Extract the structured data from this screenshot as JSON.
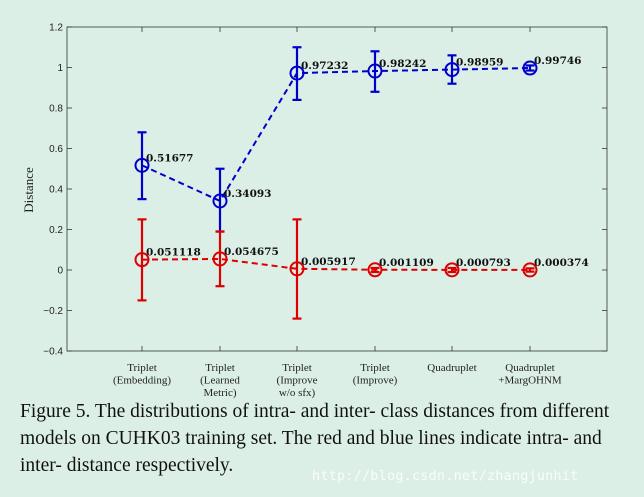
{
  "chart_data": {
    "type": "line",
    "ylabel": "Distance",
    "xlabel": "",
    "ylim": [
      -0.4,
      1.2
    ],
    "yticks": [
      "-0.4",
      "-0.2",
      "0",
      "0.2",
      "0.4",
      "0.6",
      "0.8",
      "1",
      "1.2"
    ],
    "categories": [
      [
        "Triplet",
        "(Embedding)"
      ],
      [
        "Triplet",
        "(Learned",
        "Metric)"
      ],
      [
        "Triplet",
        "(Improve",
        "w/o sfx)"
      ],
      [
        "Triplet",
        "(Improve)"
      ],
      [
        "Quadruplet"
      ],
      [
        "Quadruplet",
        "+MargOHNM"
      ]
    ],
    "grid": false,
    "series": [
      {
        "color": "#0000cc",
        "values": [
          0.51677,
          0.34093,
          0.97232,
          0.98242,
          0.98959,
          0.99746
        ],
        "labels": [
          "0.51677",
          "0.34093",
          "0.97232",
          "0.98242",
          "0.98959",
          "0.99746"
        ],
        "error_low": [
          0.35,
          0.19,
          0.84,
          0.88,
          0.92,
          0.985
        ],
        "error_high": [
          0.68,
          0.5,
          1.1,
          1.08,
          1.06,
          1.01
        ]
      },
      {
        "color": "#dd0000",
        "values": [
          0.051118,
          0.054675,
          0.005917,
          0.001109,
          0.000793,
          0.000374
        ],
        "labels": [
          "0.051118",
          "0.054675",
          "0.005917",
          "0.001109",
          "0.000793",
          "0.000374"
        ],
        "error_low": [
          -0.15,
          -0.08,
          -0.24,
          -0.01,
          -0.01,
          -0.008
        ],
        "error_high": [
          0.25,
          0.19,
          0.25,
          0.01,
          0.01,
          0.008
        ]
      }
    ]
  },
  "caption": "Figure 5. The distributions of intra- and inter- class distances from different models on CUHK03 training set. The red and blue lines indicate intra- and inter- distance respectively.",
  "watermark": "http://blog.csdn.net/zhangjunhit"
}
